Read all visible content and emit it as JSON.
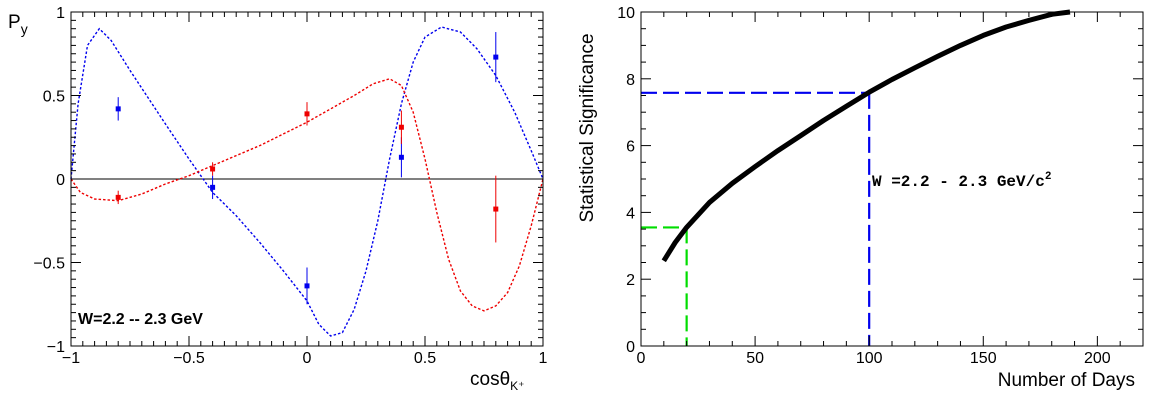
{
  "chart_data": [
    {
      "type": "scatter",
      "title": "",
      "ylabel_main": "P",
      "ylabel_sub": "y",
      "xlabel_main": "cosθ",
      "xlabel_sub": "K⁺",
      "xlim": [
        -1,
        1
      ],
      "ylim": [
        -1,
        1
      ],
      "xticks": [
        -1,
        -0.5,
        0,
        0.5,
        1
      ],
      "yticks": [
        -1,
        -0.5,
        0,
        0.5,
        1
      ],
      "xtick_labels": [
        "−1",
        "−0.5",
        "0",
        "0.5",
        "1"
      ],
      "ytick_labels": [
        "−1",
        "−0.5",
        "0",
        "0.5",
        "1"
      ],
      "annotation": "W=2.2 -- 2.3 GeV",
      "zero_line": true,
      "series": [
        {
          "color": "#0000ee",
          "points": [
            {
              "x": -0.8,
              "y": 0.42,
              "err": 0.07
            },
            {
              "x": -0.4,
              "y": -0.05,
              "err": 0.07
            },
            {
              "x": 0.0,
              "y": -0.64,
              "err": 0.11
            },
            {
              "x": 0.4,
              "y": 0.13,
              "err": 0.12
            },
            {
              "x": 0.8,
              "y": 0.73,
              "err": 0.15
            }
          ],
          "curve": [
            {
              "x": -1.0,
              "y": 0.0
            },
            {
              "x": -0.97,
              "y": 0.45
            },
            {
              "x": -0.93,
              "y": 0.8
            },
            {
              "x": -0.88,
              "y": 0.9
            },
            {
              "x": -0.83,
              "y": 0.83
            },
            {
              "x": -0.75,
              "y": 0.65
            },
            {
              "x": -0.6,
              "y": 0.33
            },
            {
              "x": -0.5,
              "y": 0.12
            },
            {
              "x": -0.4,
              "y": -0.08
            },
            {
              "x": -0.3,
              "y": -0.22
            },
            {
              "x": -0.2,
              "y": -0.38
            },
            {
              "x": -0.1,
              "y": -0.55
            },
            {
              "x": 0.0,
              "y": -0.73
            },
            {
              "x": 0.05,
              "y": -0.87
            },
            {
              "x": 0.1,
              "y": -0.94
            },
            {
              "x": 0.15,
              "y": -0.92
            },
            {
              "x": 0.2,
              "y": -0.78
            },
            {
              "x": 0.25,
              "y": -0.55
            },
            {
              "x": 0.3,
              "y": -0.25
            },
            {
              "x": 0.35,
              "y": 0.12
            },
            {
              "x": 0.4,
              "y": 0.45
            },
            {
              "x": 0.45,
              "y": 0.7
            },
            {
              "x": 0.5,
              "y": 0.85
            },
            {
              "x": 0.57,
              "y": 0.91
            },
            {
              "x": 0.65,
              "y": 0.88
            },
            {
              "x": 0.72,
              "y": 0.78
            },
            {
              "x": 0.8,
              "y": 0.62
            },
            {
              "x": 0.88,
              "y": 0.4
            },
            {
              "x": 0.95,
              "y": 0.17
            },
            {
              "x": 1.0,
              "y": 0.0
            }
          ]
        },
        {
          "color": "#ee0000",
          "points": [
            {
              "x": -0.8,
              "y": -0.11,
              "err": 0.04
            },
            {
              "x": -0.4,
              "y": 0.06,
              "err": 0.04
            },
            {
              "x": 0.0,
              "y": 0.39,
              "err": 0.07
            },
            {
              "x": 0.4,
              "y": 0.31,
              "err": 0.1
            },
            {
              "x": 0.8,
              "y": -0.18,
              "err": 0.2
            }
          ],
          "curve": [
            {
              "x": -1.0,
              "y": 0.0
            },
            {
              "x": -0.96,
              "y": -0.08
            },
            {
              "x": -0.9,
              "y": -0.12
            },
            {
              "x": -0.8,
              "y": -0.13
            },
            {
              "x": -0.7,
              "y": -0.09
            },
            {
              "x": -0.6,
              "y": -0.03
            },
            {
              "x": -0.5,
              "y": 0.02
            },
            {
              "x": -0.4,
              "y": 0.08
            },
            {
              "x": -0.3,
              "y": 0.14
            },
            {
              "x": -0.2,
              "y": 0.2
            },
            {
              "x": -0.1,
              "y": 0.27
            },
            {
              "x": 0.0,
              "y": 0.34
            },
            {
              "x": 0.1,
              "y": 0.42
            },
            {
              "x": 0.2,
              "y": 0.5
            },
            {
              "x": 0.28,
              "y": 0.57
            },
            {
              "x": 0.35,
              "y": 0.6
            },
            {
              "x": 0.4,
              "y": 0.56
            },
            {
              "x": 0.45,
              "y": 0.4
            },
            {
              "x": 0.5,
              "y": 0.12
            },
            {
              "x": 0.55,
              "y": -0.2
            },
            {
              "x": 0.6,
              "y": -0.48
            },
            {
              "x": 0.65,
              "y": -0.67
            },
            {
              "x": 0.7,
              "y": -0.76
            },
            {
              "x": 0.75,
              "y": -0.79
            },
            {
              "x": 0.8,
              "y": -0.76
            },
            {
              "x": 0.85,
              "y": -0.68
            },
            {
              "x": 0.9,
              "y": -0.52
            },
            {
              "x": 0.95,
              "y": -0.28
            },
            {
              "x": 1.0,
              "y": 0.0
            }
          ]
        }
      ]
    },
    {
      "type": "line",
      "title": "",
      "xlabel": "Number of Days",
      "ylabel": "Statistical Significance",
      "xlim": [
        0,
        220
      ],
      "ylim": [
        0,
        10
      ],
      "xticks": [
        0,
        50,
        100,
        150,
        200
      ],
      "yticks": [
        0,
        2,
        4,
        6,
        8,
        10
      ],
      "annotation_main": "W =2.2 - 2.3 GeV/c",
      "annotation_sup": "2",
      "series": [
        {
          "color": "#000000",
          "x": [
            10,
            15,
            20,
            30,
            40,
            50,
            60,
            70,
            80,
            90,
            100,
            110,
            120,
            130,
            140,
            150,
            160,
            170,
            180,
            188
          ],
          "y": [
            2.55,
            3.1,
            3.55,
            4.3,
            4.87,
            5.37,
            5.85,
            6.3,
            6.75,
            7.18,
            7.6,
            7.98,
            8.33,
            8.67,
            9.0,
            9.3,
            9.55,
            9.75,
            9.93,
            10.0
          ]
        }
      ],
      "guides": [
        {
          "color": "#0000ee",
          "x": 100,
          "y": 7.58
        },
        {
          "color": "#00dd00",
          "x": 20,
          "y": 3.55
        }
      ]
    }
  ]
}
